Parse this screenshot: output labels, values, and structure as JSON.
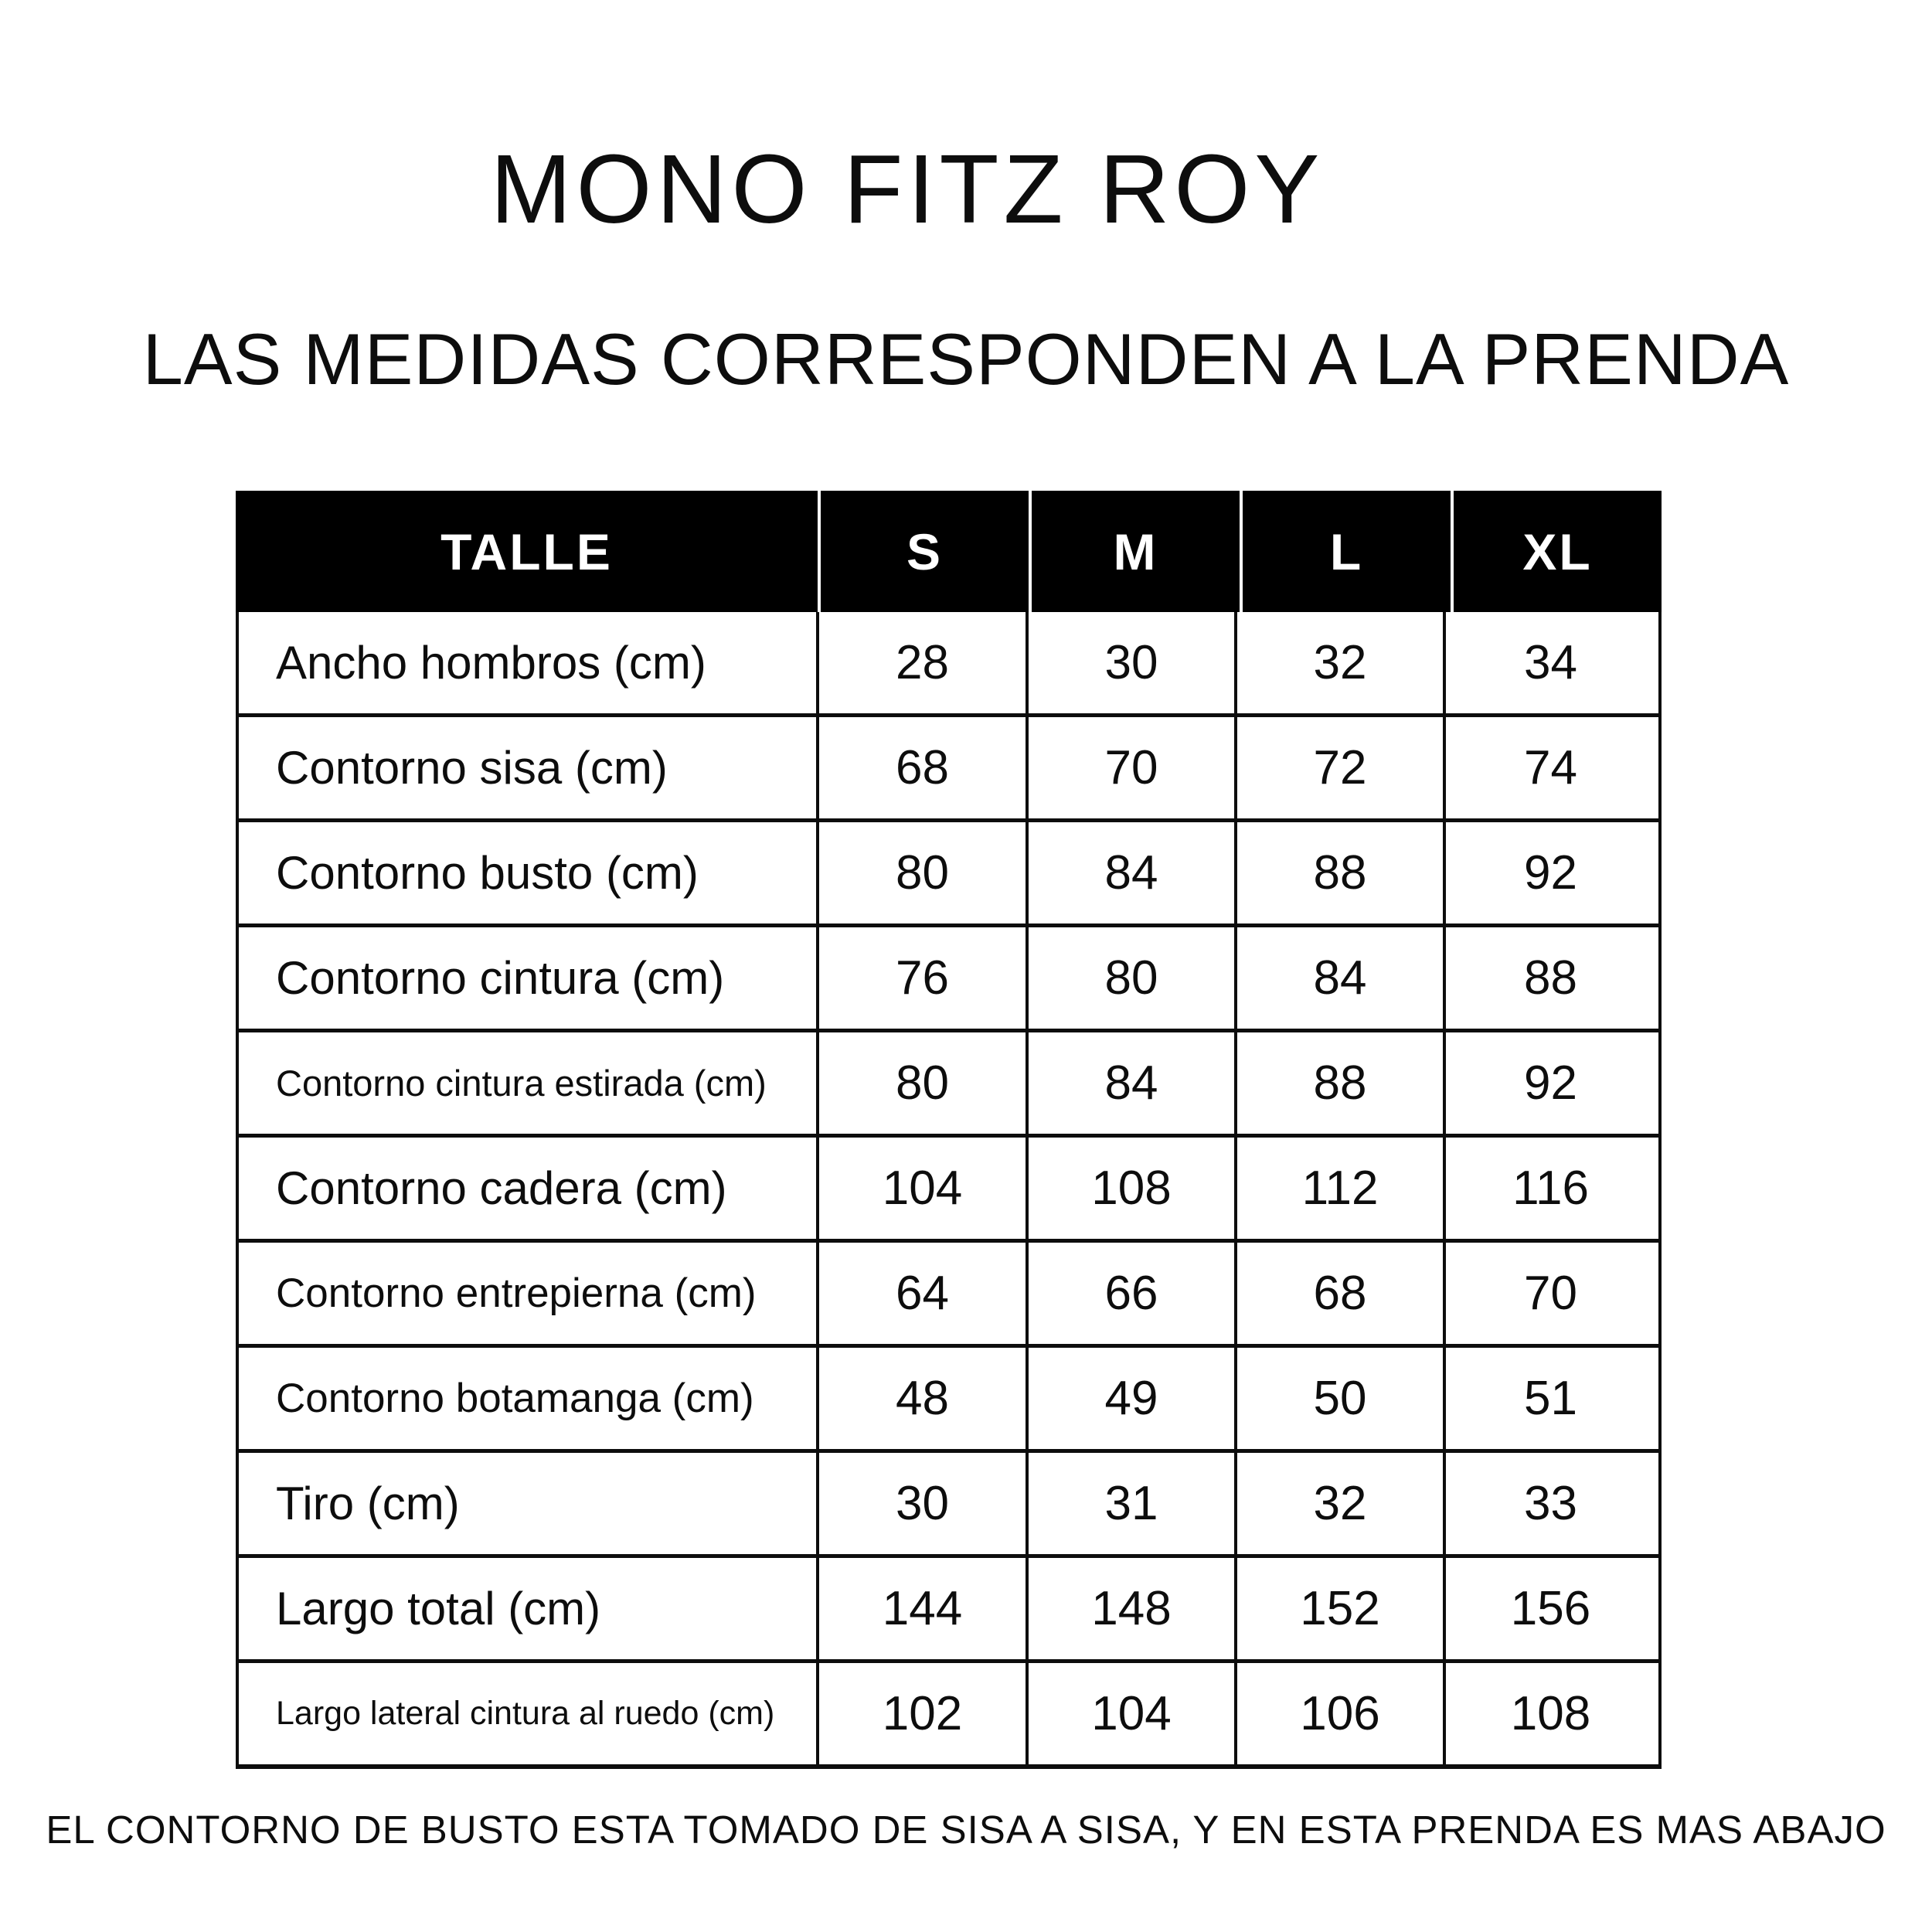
{
  "title": "MONO FITZ ROY",
  "subtitle": "LAS MEDIDAS CORRESPONDEN A LA PRENDA",
  "footnote": "EL CONTORNO DE BUSTO ESTA TOMADO DE SISA A SISA, Y EN ESTA PRENDA ES MAS ABAJO",
  "colors": {
    "header_bg": "#000000",
    "header_text": "#ffffff",
    "body_text": "#0d0d0d",
    "border": "#0d0d0d",
    "page_bg": "#ffffff"
  },
  "table": {
    "header": [
      "TALLE",
      "S",
      "M",
      "L",
      "XL"
    ],
    "rows": [
      {
        "label": "Ancho hombros (cm)",
        "values": [
          "28",
          "30",
          "32",
          "34"
        ]
      },
      {
        "label": "Contorno sisa (cm)",
        "values": [
          "68",
          "70",
          "72",
          "74"
        ]
      },
      {
        "label": "Contorno busto (cm)",
        "values": [
          "80",
          "84",
          "88",
          "92"
        ]
      },
      {
        "label": "Contorno cintura (cm)",
        "values": [
          "76",
          "80",
          "84",
          "88"
        ]
      },
      {
        "label": "Contorno cintura estirada (cm)",
        "values": [
          "80",
          "84",
          "88",
          "92"
        ]
      },
      {
        "label": "Contorno cadera (cm)",
        "values": [
          "104",
          "108",
          "112",
          "116"
        ]
      },
      {
        "label": "Contorno entrepierna (cm)",
        "values": [
          "64",
          "66",
          "68",
          "70"
        ]
      },
      {
        "label": "Contorno botamanga (cm)",
        "values": [
          "48",
          "49",
          "50",
          "51"
        ]
      },
      {
        "label": "Tiro (cm)",
        "values": [
          "30",
          "31",
          "32",
          "33"
        ]
      },
      {
        "label": "Largo total (cm)",
        "values": [
          "144",
          "148",
          "152",
          "156"
        ]
      },
      {
        "label": "Largo lateral cintura al ruedo (cm)",
        "values": [
          "102",
          "104",
          "106",
          "108"
        ]
      }
    ]
  }
}
